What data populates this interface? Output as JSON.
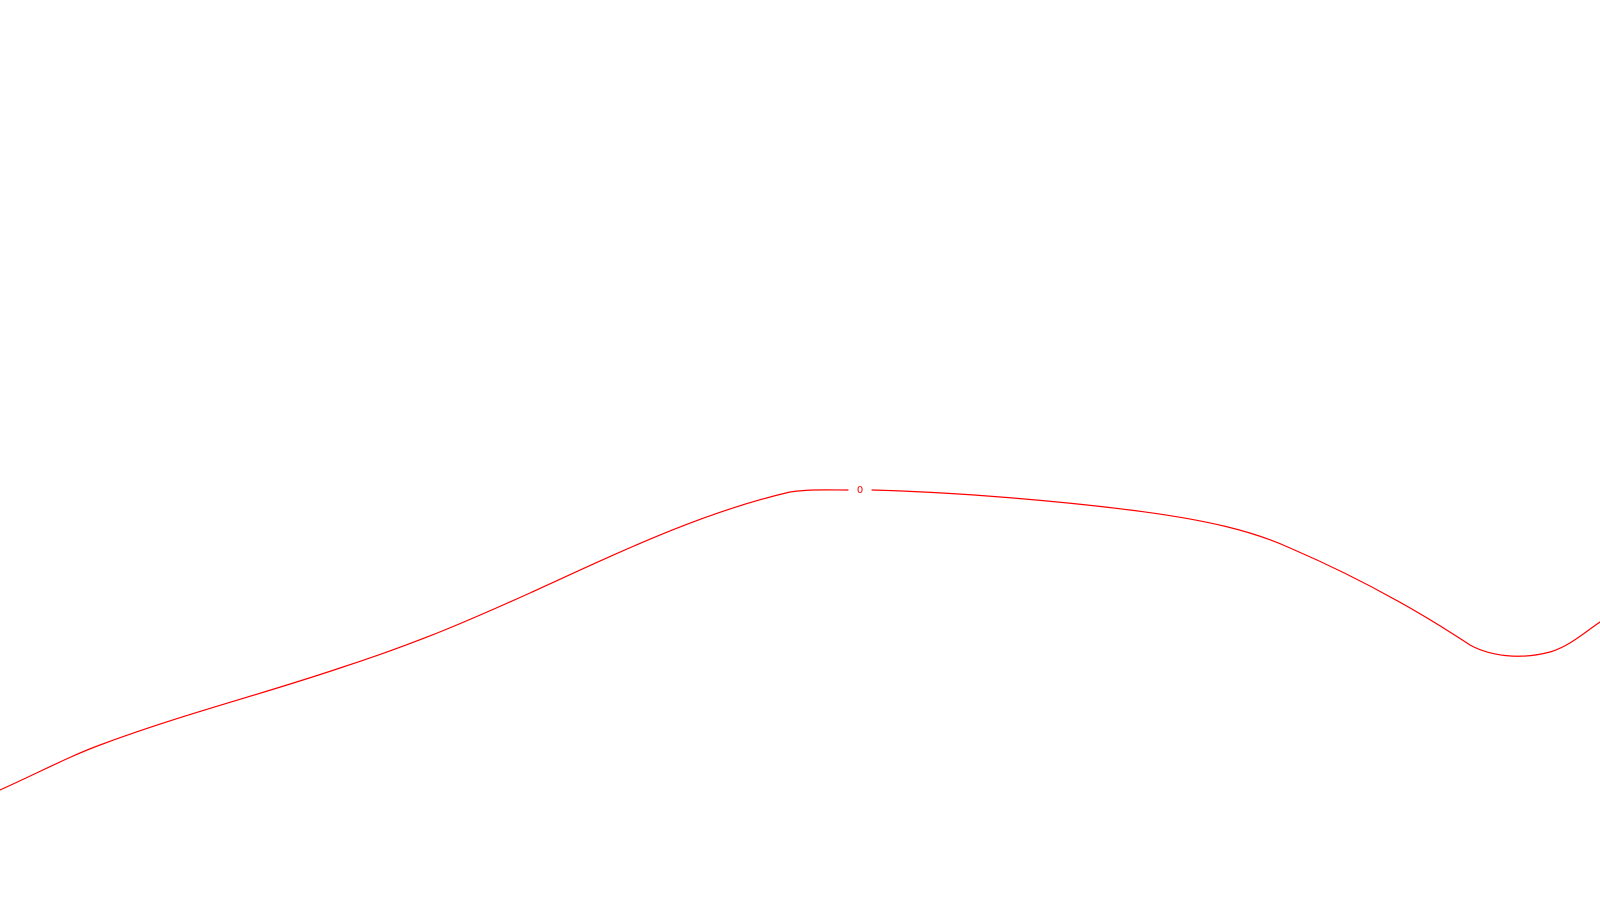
{
  "map": {
    "background_color": "#ffffff",
    "contour": {
      "color": "#ff0000",
      "label": "0"
    }
  }
}
